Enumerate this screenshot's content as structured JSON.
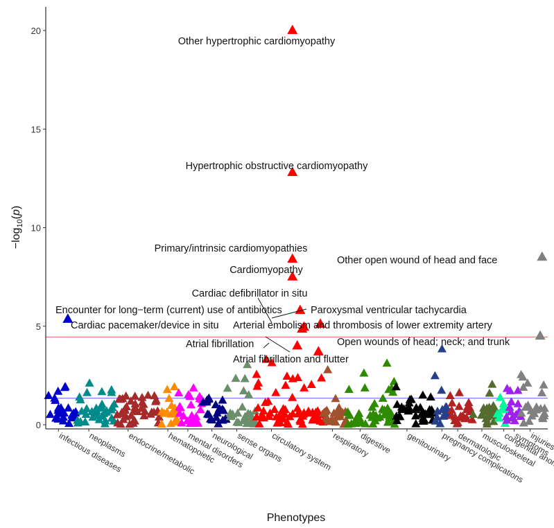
{
  "chart_data": {
    "type": "scatter",
    "title": "",
    "xlabel": "Phenotypes",
    "ylabel": "−log10(p)",
    "ylim": [
      0,
      21
    ],
    "yticks": [
      0,
      5,
      10,
      15,
      20
    ],
    "marker": "triangle",
    "grid": false,
    "legend": "none",
    "thresholds": [
      {
        "name": "bonferroni",
        "value": 4.45,
        "color": "#f08080"
      },
      {
        "name": "suggestive",
        "value": 1.35,
        "color": "#8080ff"
      }
    ],
    "categories": [
      {
        "label": "infectious diseases",
        "color": "#0000cd",
        "start": 0,
        "end": 30
      },
      {
        "label": "neoplasms",
        "color": "#008b8b",
        "start": 30,
        "end": 70
      },
      {
        "label": "endocrine/metabolic",
        "color": "#a52a2a",
        "start": 70,
        "end": 115
      },
      {
        "label": "hematopoietic",
        "color": "#ff8c00",
        "start": 115,
        "end": 135
      },
      {
        "label": "mental disorders",
        "color": "#ff00ff",
        "start": 135,
        "end": 160
      },
      {
        "label": "neurological",
        "color": "#000080",
        "start": 160,
        "end": 185
      },
      {
        "label": "sense organs",
        "color": "#6b8e6b",
        "start": 185,
        "end": 215
      },
      {
        "label": "circulatory system",
        "color": "#ff0000",
        "start": 215,
        "end": 285
      },
      {
        "label": "respiratory",
        "color": "#a0522d",
        "start": 285,
        "end": 310
      },
      {
        "label": "digestive",
        "color": "#2e8b00",
        "start": 310,
        "end": 360
      },
      {
        "label": "genitourinary",
        "color": "#000000",
        "start": 360,
        "end": 400
      },
      {
        "label": "pregnancy complications",
        "color": "#27408b",
        "start": 400,
        "end": 415
      },
      {
        "label": "dermatologic",
        "color": "#b22222",
        "start": 415,
        "end": 440
      },
      {
        "label": "musculoskeletal",
        "color": "#556b2f",
        "start": 440,
        "end": 465
      },
      {
        "label": "congenital anomalies",
        "color": "#00fa9a",
        "start": 465,
        "end": 475
      },
      {
        "label": "symptoms",
        "color": "#a020f0",
        "start": 475,
        "end": 490
      },
      {
        "label": "injuries & poisonings",
        "color": "#808080",
        "start": 490,
        "end": 515
      }
    ],
    "highlighted_points": [
      {
        "label": "Other hypertrophic cardiomyopathy",
        "category": "circulatory system",
        "x": 253,
        "y": 20.0
      },
      {
        "label": "Hypertrophic obstructive cardiomyopathy",
        "category": "circulatory system",
        "x": 253,
        "y": 12.8
      },
      {
        "label": "Primary/intrinsic cardiomyopathies",
        "category": "circulatory system",
        "x": 253,
        "y": 8.4
      },
      {
        "label": "Cardiomyopathy",
        "category": "circulatory system",
        "x": 253,
        "y": 7.5
      },
      {
        "label": "Cardiac defibrillator in situ",
        "category": "circulatory system",
        "x": 261,
        "y": 5.8
      },
      {
        "label": "Encounter for long−term (current) use of antibiotics",
        "category": "infectious diseases",
        "x": 20,
        "y": 5.35
      },
      {
        "label": "Paroxysmal ventricular tachycardia",
        "category": "circulatory system",
        "x": 282,
        "y": 5.1
      },
      {
        "label": "Cardiac pacemaker/device in situ",
        "category": "circulatory system",
        "x": 263,
        "y": 4.85
      },
      {
        "label": "Arterial embolism and thrombosis of lower extremity artery",
        "category": "circulatory system",
        "x": 265,
        "y": 4.95
      },
      {
        "label": "Other open wound of head and face",
        "category": "injuries & poisonings",
        "x": 512,
        "y": 8.5
      },
      {
        "label": "Atrial fibrillation",
        "category": "circulatory system",
        "x": 258,
        "y": 4.0
      },
      {
        "label": "Open wounds of head; neck; and trunk",
        "category": "injuries & poisonings",
        "x": 510,
        "y": 4.5
      },
      {
        "label": "Atrial fibrillation and flutter",
        "category": "circulatory system",
        "x": 280,
        "y": 3.7
      }
    ]
  }
}
